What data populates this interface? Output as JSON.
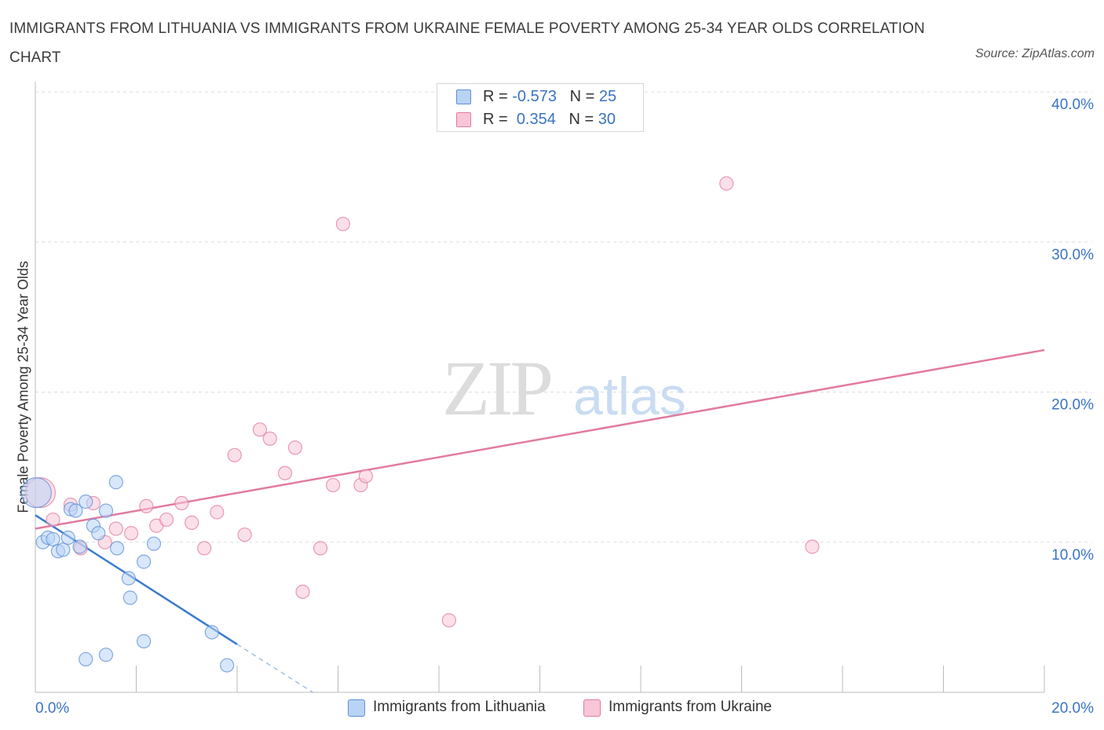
{
  "title": "IMMIGRANTS FROM LITHUANIA VS IMMIGRANTS FROM UKRAINE FEMALE POVERTY AMONG 25-34 YEAR OLDS CORRELATION CHART",
  "source": "Source: ZipAtlas.com",
  "watermark": {
    "zip": "ZIP",
    "atlas": "atlas"
  },
  "legend_top": [
    {
      "r_label": "R =",
      "r_value": "-0.573",
      "n_label": "N =",
      "n_value": "25"
    },
    {
      "r_label": "R =",
      "r_value": "0.354",
      "n_label": "N =",
      "n_value": "30"
    }
  ],
  "chart_data": {
    "type": "scatter",
    "title": "IMMIGRANTS FROM LITHUANIA VS IMMIGRANTS FROM UKRAINE FEMALE POVERTY AMONG 25-34 YEAR OLDS CORRELATION CHART",
    "xlabel": "",
    "ylabel": "Female Poverty Among 25-34 Year Olds",
    "xlim": [
      0,
      20
    ],
    "ylim": [
      0,
      40
    ],
    "x_tick_labels": [
      "0.0%",
      "20.0%"
    ],
    "y_ticks": [
      10,
      20,
      30,
      40
    ],
    "y_tick_labels": [
      "10.0%",
      "20.0%",
      "30.0%",
      "40.0%"
    ],
    "grid": true,
    "legend": "bottom-center",
    "series": [
      {
        "name": "Immigrants from Lithuania",
        "color": "#5b8fd8",
        "fill": "#b9d3f5",
        "r": -0.573,
        "n": 25,
        "points": [
          {
            "x": 0.02,
            "y": 13.3,
            "big": true
          },
          {
            "x": 0.15,
            "y": 10.0
          },
          {
            "x": 0.25,
            "y": 10.3
          },
          {
            "x": 0.35,
            "y": 10.2
          },
          {
            "x": 0.45,
            "y": 9.4
          },
          {
            "x": 0.55,
            "y": 9.5
          },
          {
            "x": 0.65,
            "y": 10.3
          },
          {
            "x": 0.7,
            "y": 12.2
          },
          {
            "x": 0.8,
            "y": 12.1
          },
          {
            "x": 0.88,
            "y": 9.7
          },
          {
            "x": 1.0,
            "y": 12.7
          },
          {
            "x": 1.15,
            "y": 11.1
          },
          {
            "x": 1.25,
            "y": 10.6
          },
          {
            "x": 1.4,
            "y": 12.1
          },
          {
            "x": 1.6,
            "y": 14.0
          },
          {
            "x": 1.62,
            "y": 9.6
          },
          {
            "x": 1.85,
            "y": 7.6
          },
          {
            "x": 1.88,
            "y": 6.3
          },
          {
            "x": 2.15,
            "y": 8.7
          },
          {
            "x": 2.35,
            "y": 9.9
          },
          {
            "x": 1.4,
            "y": 2.5
          },
          {
            "x": 1.0,
            "y": 2.2
          },
          {
            "x": 2.15,
            "y": 3.4
          },
          {
            "x": 3.5,
            "y": 4.0
          },
          {
            "x": 3.8,
            "y": 1.8
          }
        ],
        "trend": {
          "x0": 0,
          "y0": 11.8,
          "x1": 4.0,
          "y1": 3.2,
          "dash_x1": 5.5,
          "dash_y1": 0.0
        }
      },
      {
        "name": "Immigrants from Ukraine",
        "color": "#e27aa0",
        "fill": "#f8c6d6",
        "r": 0.354,
        "n": 30,
        "points": [
          {
            "x": 0.1,
            "y": 13.3,
            "big": true
          },
          {
            "x": 0.35,
            "y": 11.5
          },
          {
            "x": 0.7,
            "y": 12.5
          },
          {
            "x": 0.9,
            "y": 9.6
          },
          {
            "x": 1.15,
            "y": 12.6
          },
          {
            "x": 1.38,
            "y": 10.0
          },
          {
            "x": 1.6,
            "y": 10.9
          },
          {
            "x": 1.9,
            "y": 10.6
          },
          {
            "x": 2.2,
            "y": 12.4
          },
          {
            "x": 2.4,
            "y": 11.1
          },
          {
            "x": 2.6,
            "y": 11.5
          },
          {
            "x": 2.9,
            "y": 12.6
          },
          {
            "x": 3.1,
            "y": 11.3
          },
          {
            "x": 3.35,
            "y": 9.6
          },
          {
            "x": 3.6,
            "y": 12.0
          },
          {
            "x": 3.95,
            "y": 15.8
          },
          {
            "x": 4.15,
            "y": 10.5
          },
          {
            "x": 4.45,
            "y": 17.5
          },
          {
            "x": 4.65,
            "y": 16.9
          },
          {
            "x": 4.95,
            "y": 14.6
          },
          {
            "x": 5.15,
            "y": 16.3
          },
          {
            "x": 5.3,
            "y": 6.7
          },
          {
            "x": 5.65,
            "y": 9.6
          },
          {
            "x": 5.9,
            "y": 13.8
          },
          {
            "x": 6.1,
            "y": 31.2
          },
          {
            "x": 6.45,
            "y": 13.8
          },
          {
            "x": 6.55,
            "y": 14.4
          },
          {
            "x": 8.2,
            "y": 4.8
          },
          {
            "x": 13.7,
            "y": 33.9
          },
          {
            "x": 15.4,
            "y": 9.7
          }
        ],
        "trend": {
          "x0": 0,
          "y0": 10.9,
          "x1": 20,
          "y1": 22.8
        }
      }
    ]
  }
}
